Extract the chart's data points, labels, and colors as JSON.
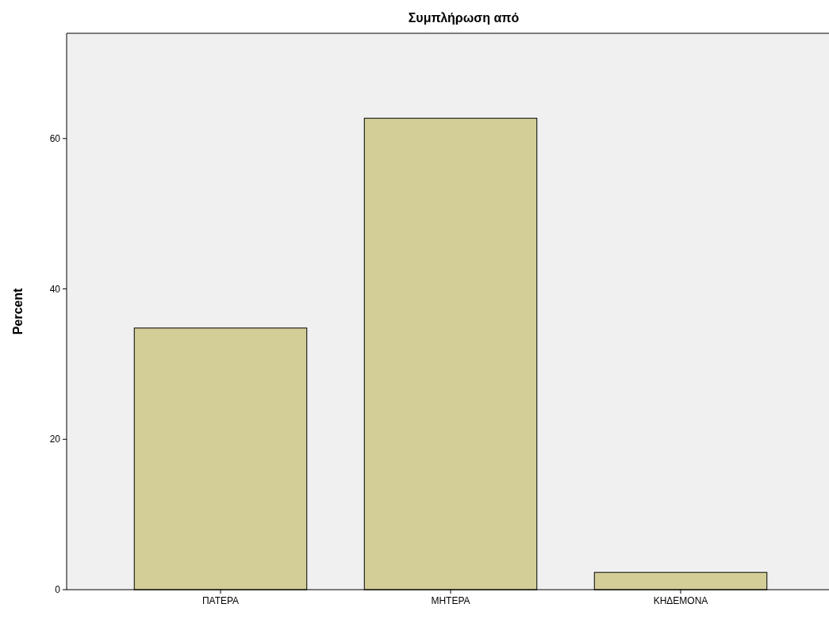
{
  "chart_data": {
    "type": "bar",
    "title": "Συμπλήρωση από",
    "ylabel": "Percent",
    "categories": [
      "ΠΑΤΕΡΑ",
      "ΜΗΤΕΡΑ",
      "ΚΗΔΕΜΟΝΑ"
    ],
    "values": [
      34.8,
      62.7,
      2.3
    ],
    "color": "#d3ce97",
    "ylim": [
      0,
      74
    ],
    "yticks": [
      0,
      20,
      40,
      60
    ],
    "grid": false
  }
}
